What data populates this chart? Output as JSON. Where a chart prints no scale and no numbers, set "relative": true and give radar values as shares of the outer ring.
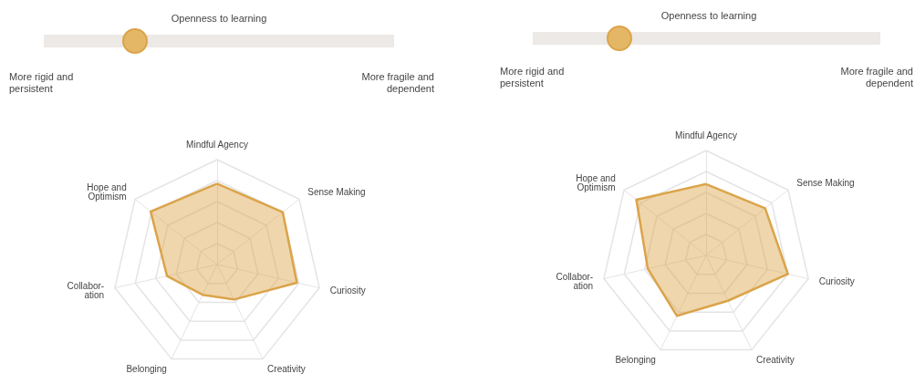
{
  "chart_data": [
    {
      "type": "radar",
      "title": "Openness to learning",
      "annotations": [
        "More rigid and persistent",
        "More fragile and dependent"
      ],
      "categories": [
        "Mindful Agency",
        "Sense Making",
        "Curiosity",
        "Creativity",
        "Belonging",
        "Collabor-\nation",
        "Hope and\nOptimism"
      ],
      "relative": true,
      "series": [
        {
          "color": "#dba44a",
          "values": [
            0.77,
            0.8,
            0.78,
            0.37,
            0.32,
            0.49,
            0.81
          ]
        }
      ]
    },
    {
      "type": "radar",
      "title": "Openness to learning",
      "annotations": [
        "More rigid and persistent",
        "More fragile and dependent"
      ],
      "categories": [
        "Mindful Agency",
        "Sense Making",
        "Curiosity",
        "Creativity",
        "Belonging",
        "Collabor-\nation",
        "Hope and\nOptimism"
      ],
      "relative": true,
      "series": [
        {
          "color": "#dba44a",
          "values": [
            0.68,
            0.72,
            0.8,
            0.48,
            0.64,
            0.57,
            0.85
          ]
        }
      ]
    }
  ]
}
